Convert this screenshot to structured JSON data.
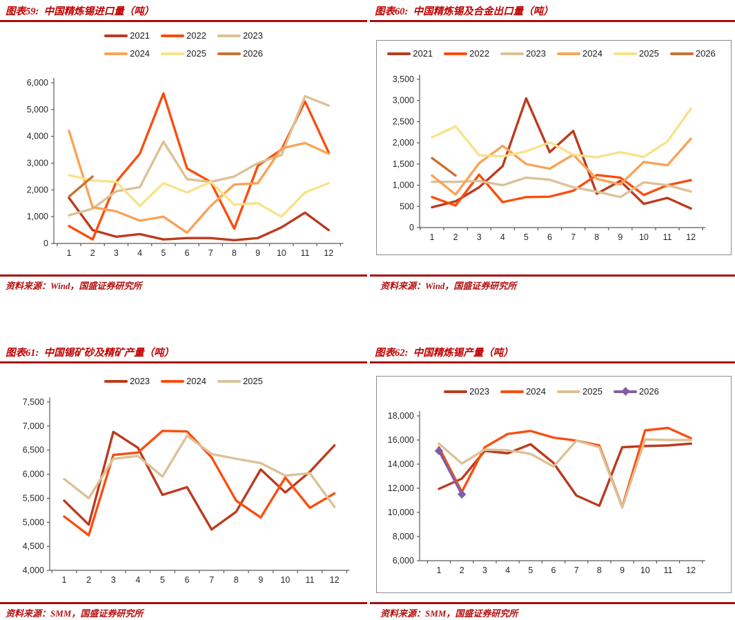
{
  "page": {
    "background": "#ffffff"
  },
  "accent": {
    "rule_color": "#a60c0c",
    "title_color": "#c00000",
    "axis_color": "#595959",
    "tick_label_color": "#262626"
  },
  "chart_data": [
    {
      "id": "fig59",
      "title": "图表59:  中国精炼锡进口量（吨）",
      "source": "资料来源：Wind，国盛证券研究所",
      "type": "line",
      "x": [
        1,
        2,
        3,
        4,
        5,
        6,
        7,
        8,
        9,
        10,
        11,
        12
      ],
      "xlabel": "",
      "ylabel": "",
      "ylim": [
        0,
        6000
      ],
      "ytick_step": 1000,
      "grid": false,
      "legend_position": "top-center",
      "legend_rows": [
        [
          0,
          1,
          2
        ],
        [
          3,
          4,
          5
        ]
      ],
      "series": [
        {
          "name": "2021",
          "color": "#bc3a1e",
          "values": [
            1700,
            500,
            250,
            350,
            150,
            200,
            200,
            120,
            200,
            600,
            1150,
            500
          ]
        },
        {
          "name": "2022",
          "color": "#fb4d0d",
          "values": [
            650,
            150,
            2300,
            3350,
            5600,
            2800,
            2300,
            550,
            2900,
            3500,
            5300,
            3400
          ]
        },
        {
          "name": "2023",
          "color": "#dcc196",
          "values": [
            1050,
            1300,
            1950,
            2100,
            3800,
            2400,
            2300,
            2500,
            3000,
            3300,
            5500,
            5150
          ]
        },
        {
          "name": "2024",
          "color": "#f9a356",
          "values": [
            4200,
            1350,
            1200,
            850,
            1000,
            400,
            1400,
            2200,
            2250,
            3550,
            3750,
            3350
          ]
        },
        {
          "name": "2025",
          "color": "#f8e28a",
          "values": [
            2550,
            2350,
            2300,
            1400,
            2250,
            1900,
            2300,
            1450,
            1500,
            1000,
            1900,
            2250
          ]
        },
        {
          "name": "2026",
          "color": "#cb7130",
          "values": [
            1750,
            2500,
            null,
            null,
            null,
            null,
            null,
            null,
            null,
            null,
            null,
            null
          ]
        }
      ]
    },
    {
      "id": "fig60",
      "title": "图表60:  中国精炼锡及合金出口量（吨）",
      "source": "资料来源：Wind，国盛证券研究所",
      "type": "line",
      "x": [
        1,
        2,
        3,
        4,
        5,
        6,
        7,
        8,
        9,
        10,
        11,
        12
      ],
      "xlabel": "",
      "ylabel": "",
      "ylim": [
        0,
        3500
      ],
      "ytick_step": 500,
      "grid": false,
      "legend_position": "top-center",
      "legend_rows": [
        [
          0,
          1,
          2,
          3,
          4,
          5
        ]
      ],
      "series": [
        {
          "name": "2021",
          "color": "#bc3a1e",
          "values": [
            480,
            620,
            950,
            1450,
            3050,
            1780,
            2280,
            800,
            1100,
            560,
            700,
            450
          ]
        },
        {
          "name": "2022",
          "color": "#fb4d0d",
          "values": [
            720,
            520,
            1250,
            600,
            720,
            730,
            870,
            1240,
            1180,
            770,
            1000,
            1120
          ]
        },
        {
          "name": "2023",
          "color": "#dcc196",
          "values": [
            1080,
            1080,
            1100,
            1000,
            1180,
            1130,
            950,
            850,
            720,
            1070,
            1000,
            850
          ]
        },
        {
          "name": "2024",
          "color": "#f9a356",
          "values": [
            1230,
            780,
            1520,
            1930,
            1500,
            1390,
            1720,
            1150,
            1020,
            1550,
            1470,
            2100
          ]
        },
        {
          "name": "2025",
          "color": "#f8e28a",
          "values": [
            2130,
            2390,
            1710,
            1680,
            1800,
            2010,
            1720,
            1660,
            1780,
            1670,
            2030,
            2810
          ]
        },
        {
          "name": "2026",
          "color": "#cb7130",
          "values": [
            1640,
            1230,
            null,
            null,
            null,
            null,
            null,
            null,
            null,
            null,
            null,
            null
          ]
        }
      ]
    },
    {
      "id": "fig61",
      "title": "图表61:  中国锡矿砂及精矿产量（吨）",
      "source": "资料来源：SMM，国盛证券研究所",
      "type": "line",
      "x": [
        1,
        2,
        3,
        4,
        5,
        6,
        7,
        8,
        9,
        10,
        11,
        12
      ],
      "xlabel": "",
      "ylabel": "",
      "ylim": [
        4000,
        7500
      ],
      "ytick_step": 500,
      "grid": false,
      "legend_position": "top-center",
      "legend_rows": [
        [
          0,
          1,
          2
        ]
      ],
      "series": [
        {
          "name": "2023",
          "color": "#bc3a1e",
          "values": [
            5450,
            4950,
            6880,
            6550,
            5570,
            5730,
            4850,
            5220,
            6100,
            5620,
            6050,
            6600
          ]
        },
        {
          "name": "2024",
          "color": "#fb4d0d",
          "values": [
            5120,
            4730,
            6400,
            6450,
            6900,
            6890,
            6350,
            5450,
            5100,
            5930,
            5300,
            5600
          ]
        },
        {
          "name": "2025",
          "color": "#dcc196",
          "values": [
            5900,
            5500,
            6320,
            6380,
            5950,
            6800,
            6420,
            6320,
            6230,
            5970,
            6020,
            5320
          ]
        }
      ]
    },
    {
      "id": "fig62",
      "title": "图表62:  中国精炼锡产量（吨）",
      "source": "资料来源：SMM，国盛证券研究所",
      "type": "line",
      "x": [
        1,
        2,
        3,
        4,
        5,
        6,
        7,
        8,
        9,
        10,
        11,
        12
      ],
      "xlabel": "",
      "ylabel": "",
      "ylim": [
        6000,
        18000
      ],
      "ytick_step": 2000,
      "grid": false,
      "legend_position": "top-center",
      "legend_rows": [
        [
          0,
          1,
          2,
          3
        ]
      ],
      "series": [
        {
          "name": "2023",
          "color": "#bc3a1e",
          "values": [
            11950,
            12800,
            15100,
            14900,
            15650,
            14100,
            11400,
            10550,
            15400,
            15500,
            15550,
            15700
          ]
        },
        {
          "name": "2024",
          "color": "#fb4d0d",
          "values": [
            15400,
            11700,
            15400,
            16500,
            16750,
            16200,
            15950,
            15550,
            10450,
            16800,
            17000,
            16150
          ]
        },
        {
          "name": "2025",
          "color": "#dcc196",
          "values": [
            15700,
            14050,
            15200,
            15150,
            14850,
            13800,
            15950,
            15400,
            10400,
            16050,
            16000,
            16000
          ]
        },
        {
          "name": "2026",
          "color": "#7e5fa6",
          "marker": "diamond",
          "values": [
            15100,
            11500,
            null,
            null,
            null,
            null,
            null,
            null,
            null,
            null,
            null,
            null
          ]
        }
      ]
    }
  ]
}
